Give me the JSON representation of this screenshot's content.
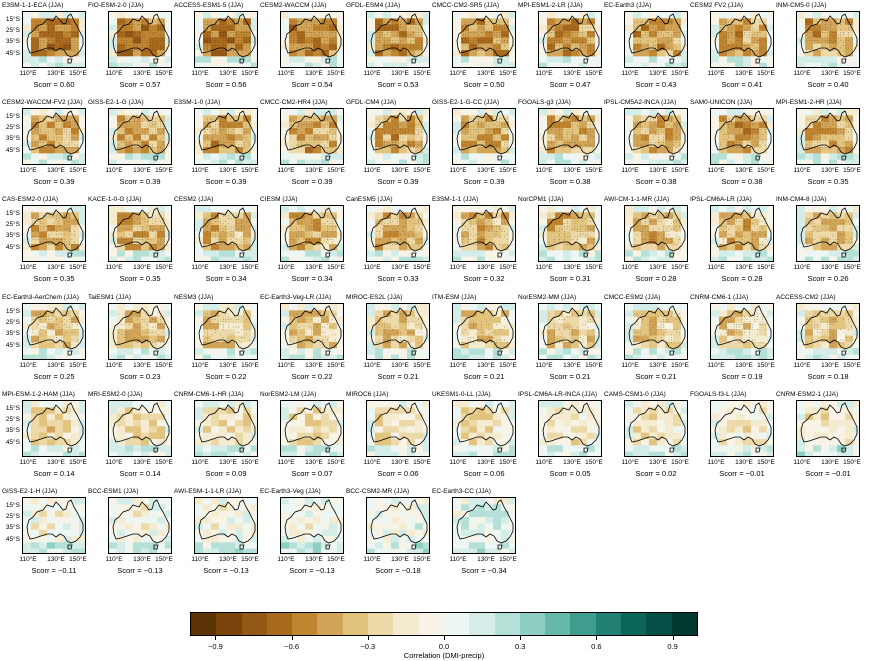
{
  "chart_data": {
    "type": "heatmap",
    "description_type": "map-panel grid",
    "season": "JJA",
    "ytick_labels": [
      "15°S",
      "25°S",
      "35°S",
      "45°S"
    ],
    "xtick_labels": [
      "110°E",
      "130°E",
      "150°E"
    ],
    "colorbar": {
      "label": "Correlation (DMI-precip)",
      "range": [
        -1.0,
        1.0
      ],
      "tick_labels": [
        "−0.9",
        "−0.6",
        "−0.3",
        "0.0",
        "0.3",
        "0.6",
        "0.9"
      ],
      "colors": [
        "#5c3306",
        "#7a450d",
        "#935815",
        "#a96a1e",
        "#c08530",
        "#d2a457",
        "#e2c47f",
        "#ecd9a7",
        "#f4ebd0",
        "#f7f3e7",
        "#eef6f4",
        "#d4ede8",
        "#b4e0d8",
        "#8ecfc3",
        "#65b8aa",
        "#3f9c8f",
        "#1f8073",
        "#0a6659",
        "#044f45",
        "#01382f"
      ]
    },
    "panels": [
      {
        "title": "E3SM-1-1-ECA (JJA)",
        "scorr": "Scorr = 0.60",
        "value": 0.6
      },
      {
        "title": "FIO-ESM-2-0 (JJA)",
        "scorr": "Scorr = 0.57",
        "value": 0.57
      },
      {
        "title": "ACCESS-ESM1-5 (JJA)",
        "scorr": "Scorr = 0.56",
        "value": 0.56
      },
      {
        "title": "CESM2-WACCM (JJA)",
        "scorr": "Scorr = 0.54",
        "value": 0.54
      },
      {
        "title": "GFDL-ESM4 (JJA)",
        "scorr": "Scorr = 0.53",
        "value": 0.53
      },
      {
        "title": "CMCC-CM2-SR5 (JJA)",
        "scorr": "Scorr = 0.50",
        "value": 0.5
      },
      {
        "title": "MPI-ESM1-2-LR (JJA)",
        "scorr": "Scorr = 0.47",
        "value": 0.47
      },
      {
        "title": "EC-Earth3 (JJA)",
        "scorr": "Scorr = 0.43",
        "value": 0.43
      },
      {
        "title": "CESM2 FV2 (JJA)",
        "scorr": "Scorr = 0.41",
        "value": 0.41
      },
      {
        "title": "INM-CM5-0 (JJA)",
        "scorr": "Scorr = 0.40",
        "value": 0.4
      },
      {
        "title": "CESM2-WACCM-FV2 (JJA)",
        "scorr": "Scorr = 0.39",
        "value": 0.39
      },
      {
        "title": "GISS-E2-1-G (JJA)",
        "scorr": "Scorr = 0.39",
        "value": 0.39
      },
      {
        "title": "E3SM-1-0 (JJA)",
        "scorr": "Scorr = 0.39",
        "value": 0.39
      },
      {
        "title": "CMCC-CM2-HR4 (JJA)",
        "scorr": "Scorr = 0.39",
        "value": 0.39
      },
      {
        "title": "GFDL-CM4 (JJA)",
        "scorr": "Scorr = 0.39",
        "value": 0.39
      },
      {
        "title": "GISS-E2-1-G-CC (JJA)",
        "scorr": "Scorr = 0.39",
        "value": 0.39
      },
      {
        "title": "FGOALS-g3 (JJA)",
        "scorr": "Scorr = 0.38",
        "value": 0.38
      },
      {
        "title": "IPSL-CM5A2-INCA (JJA)",
        "scorr": "Scorr = 0.38",
        "value": 0.38
      },
      {
        "title": "SAM0-UNICON (JJA)",
        "scorr": "Scorr = 0.38",
        "value": 0.38
      },
      {
        "title": "MPI-ESM1-2-HR (JJA)",
        "scorr": "Scorr = 0.35",
        "value": 0.35
      },
      {
        "title": "CAS-ESM2-0 (JJA)",
        "scorr": "Scorr = 0.35",
        "value": 0.35
      },
      {
        "title": "KACE-1-0-G (JJA)",
        "scorr": "Scorr = 0.35",
        "value": 0.35
      },
      {
        "title": "CESM2 (JJA)",
        "scorr": "Scorr = 0.34",
        "value": 0.34
      },
      {
        "title": "CIESM (JJA)",
        "scorr": "Scorr = 0.34",
        "value": 0.34
      },
      {
        "title": "CanESM5 (JJA)",
        "scorr": "Scorr = 0.33",
        "value": 0.33
      },
      {
        "title": "E3SM-1-1 (JJA)",
        "scorr": "Scorr = 0.32",
        "value": 0.32
      },
      {
        "title": "NorCPM1 (JJA)",
        "scorr": "Scorr = 0.31",
        "value": 0.31
      },
      {
        "title": "AWI-CM-1-1-MR (JJA)",
        "scorr": "Scorr = 0.28",
        "value": 0.28
      },
      {
        "title": "IPSL-CM6A-LR (JJA)",
        "scorr": "Scorr = 0.28",
        "value": 0.28
      },
      {
        "title": "INM-CM4-8 (JJA)",
        "scorr": "Scorr = 0.26",
        "value": 0.26
      },
      {
        "title": "EC-Earth3-AerChem (JJA)",
        "scorr": "Scorr = 0.25",
        "value": 0.25
      },
      {
        "title": "TaiESM1 (JJA)",
        "scorr": "Scorr = 0.23",
        "value": 0.23
      },
      {
        "title": "NESM3 (JJA)",
        "scorr": "Scorr = 0.22",
        "value": 0.22
      },
      {
        "title": "EC-Earth3-Veg-LR (JJA)",
        "scorr": "Scorr = 0.22",
        "value": 0.22
      },
      {
        "title": "MIROC-ES2L (JJA)",
        "scorr": "Scorr = 0.21",
        "value": 0.21
      },
      {
        "title": "ITM-ESM (JJA)",
        "scorr": "Scorr = 0.21",
        "value": 0.21
      },
      {
        "title": "NorESM2-MM (JJA)",
        "scorr": "Scorr = 0.21",
        "value": 0.21
      },
      {
        "title": "CMCC-ESM2 (JJA)",
        "scorr": "Scorr = 0.21",
        "value": 0.21
      },
      {
        "title": "CNRM-CM6-1 (JJA)",
        "scorr": "Scorr = 0.19",
        "value": 0.19
      },
      {
        "title": "ACCESS-CM2 (JJA)",
        "scorr": "Scorr = 0.18",
        "value": 0.18
      },
      {
        "title": "MPI-ESM-1-2-HAM (JJA)",
        "scorr": "Scorr = 0.14",
        "value": 0.14
      },
      {
        "title": "MRI-ESM2-0 (JJA)",
        "scorr": "Scorr = 0.14",
        "value": 0.14
      },
      {
        "title": "CNRM-CM6-1-HR (JJA)",
        "scorr": "Scorr = 0.09",
        "value": 0.09
      },
      {
        "title": "NorESM2-LM (JJA)",
        "scorr": "Scorr = 0.07",
        "value": 0.07
      },
      {
        "title": "MIROC6 (JJA)",
        "scorr": "Scorr = 0.06",
        "value": 0.06
      },
      {
        "title": "UKESM1-0-LL (JJA)",
        "scorr": "Scorr = 0.06",
        "value": 0.06
      },
      {
        "title": "IPSL-CM6A-LR-INCA (JJA)",
        "scorr": "Scorr = 0.05",
        "value": 0.05
      },
      {
        "title": "CAMS-CSM1-0 (JJA)",
        "scorr": "Scorr = 0.02",
        "value": 0.02
      },
      {
        "title": "FGOALS-f3-L (JJA)",
        "scorr": "Scorr = −0.01",
        "value": -0.01
      },
      {
        "title": "CNRM-ESM2-1 (JJA)",
        "scorr": "Scorr = −0.01",
        "value": -0.01
      },
      {
        "title": "GISS-E2-1-H (JJA)",
        "scorr": "Scorr = −0.11",
        "value": -0.11
      },
      {
        "title": "BCC-ESM1 (JJA)",
        "scorr": "Scorr = −0.13",
        "value": -0.13
      },
      {
        "title": "AWI-ESM-1-1-LR (JJA)",
        "scorr": "Scorr = −0.13",
        "value": -0.13
      },
      {
        "title": "EC-Earth3-Veg (JJA)",
        "scorr": "Scorr = −0.13",
        "value": -0.13
      },
      {
        "title": "BCC-CSM2-MR (JJA)",
        "scorr": "Scorr = −0.18",
        "value": -0.18
      },
      {
        "title": "EC-Earth3-CC (JJA)",
        "scorr": "Scorr = −0.34",
        "value": -0.34
      }
    ]
  }
}
